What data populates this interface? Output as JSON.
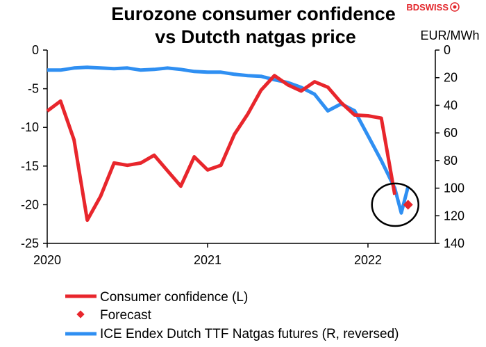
{
  "brand": {
    "name": "BDSWISS",
    "color": "#e3262b"
  },
  "colors": {
    "consumer": "#e8262c",
    "natgas": "#2f8ff2",
    "forecast": "#e8262c",
    "axis": "#000000"
  },
  "chart_data": {
    "type": "line",
    "title": "Eurozone consumer confidence vs Dutcth natgas price",
    "title_lines": [
      "Eurozone consumer confidence",
      "vs Dutcth natgas price"
    ],
    "right_axis_label": "EUR/MWh",
    "x_range": [
      2020.0,
      2022.42
    ],
    "x_ticks": [
      {
        "value": 2020,
        "label": "2020"
      },
      {
        "value": 2021,
        "label": "2021"
      },
      {
        "value": 2022,
        "label": "2022"
      }
    ],
    "y_left": {
      "range": [
        -25,
        0
      ],
      "ticks": [
        {
          "value": 0,
          "label": "0"
        },
        {
          "value": -5,
          "label": "-5"
        },
        {
          "value": -10,
          "label": "-10"
        },
        {
          "value": -15,
          "label": "-15"
        },
        {
          "value": -20,
          "label": "-20"
        },
        {
          "value": -25,
          "label": "-25"
        }
      ]
    },
    "y_right": {
      "range": [
        0,
        140
      ],
      "reversed": true,
      "ticks": [
        {
          "value": 0,
          "label": "0"
        },
        {
          "value": 20,
          "label": "20"
        },
        {
          "value": 40,
          "label": "40"
        },
        {
          "value": 60,
          "label": "60"
        },
        {
          "value": 80,
          "label": "80"
        },
        {
          "value": 100,
          "label": "100"
        },
        {
          "value": 120,
          "label": "120"
        },
        {
          "value": 140,
          "label": "140"
        }
      ]
    },
    "series": [
      {
        "name": "Consumer confidence (L)",
        "axis": "left",
        "style": "line",
        "x": [
          2020.0,
          2020.083,
          2020.167,
          2020.25,
          2020.333,
          2020.417,
          2020.5,
          2020.583,
          2020.667,
          2020.75,
          2020.833,
          2020.917,
          2021.0,
          2021.083,
          2021.167,
          2021.25,
          2021.333,
          2021.417,
          2021.5,
          2021.583,
          2021.667,
          2021.75,
          2021.833,
          2021.917,
          2022.0,
          2022.083,
          2022.167
        ],
        "values": [
          -7.9,
          -6.6,
          -11.6,
          -22.0,
          -18.9,
          -14.6,
          -14.9,
          -14.6,
          -13.6,
          -15.6,
          -17.6,
          -13.8,
          -15.5,
          -14.9,
          -10.9,
          -8.3,
          -5.2,
          -3.3,
          -4.5,
          -5.3,
          -4.1,
          -4.8,
          -6.8,
          -8.4,
          -8.5,
          -8.8,
          -18.7
        ]
      },
      {
        "name": "Forecast",
        "axis": "left",
        "style": "marker",
        "x": [
          2022.25
        ],
        "values": [
          -20.0
        ]
      },
      {
        "name": "ICE Endex Dutch TTF Natgas futures (R, reversed)",
        "axis": "right",
        "style": "line",
        "x": [
          2020.0,
          2020.083,
          2020.167,
          2020.25,
          2020.333,
          2020.417,
          2020.5,
          2020.583,
          2020.667,
          2020.75,
          2020.833,
          2020.917,
          2021.0,
          2021.083,
          2021.167,
          2021.25,
          2021.333,
          2021.417,
          2021.5,
          2021.583,
          2021.667,
          2021.75,
          2021.833,
          2021.917,
          2022.0,
          2022.083,
          2022.125,
          2022.167,
          2022.208,
          2022.25
        ],
        "values": [
          14.5,
          14.5,
          13.0,
          12.5,
          13.0,
          13.5,
          13.0,
          14.5,
          14.0,
          13.0,
          14.0,
          15.5,
          16.0,
          16.0,
          17.5,
          18.5,
          19.0,
          21.5,
          23.5,
          27.0,
          32.0,
          44.0,
          39.0,
          44.0,
          62.0,
          80.0,
          90.0,
          100.0,
          118.0,
          99.0
        ]
      }
    ],
    "annotations": [
      {
        "type": "ellipse",
        "center_x": 2022.17,
        "center_y_left": -20.0,
        "width_years": 0.29,
        "height_units_left": 5.5
      }
    ],
    "legend": {
      "placement": "bottom",
      "entries": [
        {
          "label": "Consumer confidence (L)",
          "style": "line",
          "color": "#e8262c"
        },
        {
          "label": "Forecast",
          "style": "marker",
          "color": "#e8262c"
        },
        {
          "label": "ICE Endex Dutch TTF Natgas futures (R, reversed)",
          "style": "line",
          "color": "#2f8ff2"
        }
      ]
    }
  }
}
